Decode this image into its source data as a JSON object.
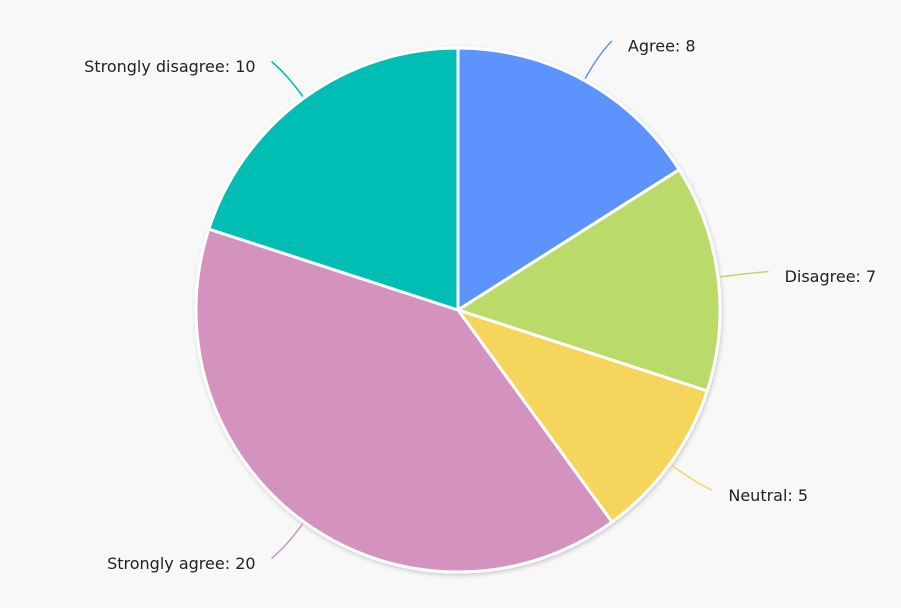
{
  "chart_data": {
    "type": "pie",
    "values": [
      8,
      7,
      5,
      20,
      10
    ],
    "value_labels": [
      "Agree: 8",
      "Disagree: 7",
      "Neutral: 5",
      "Strongly agree: 20",
      "Strongly disagree: 10"
    ],
    "colors": [
      "#5b93fd",
      "#badb6a",
      "#f6d55c",
      "#d493bf",
      "#00beb4"
    ]
  }
}
